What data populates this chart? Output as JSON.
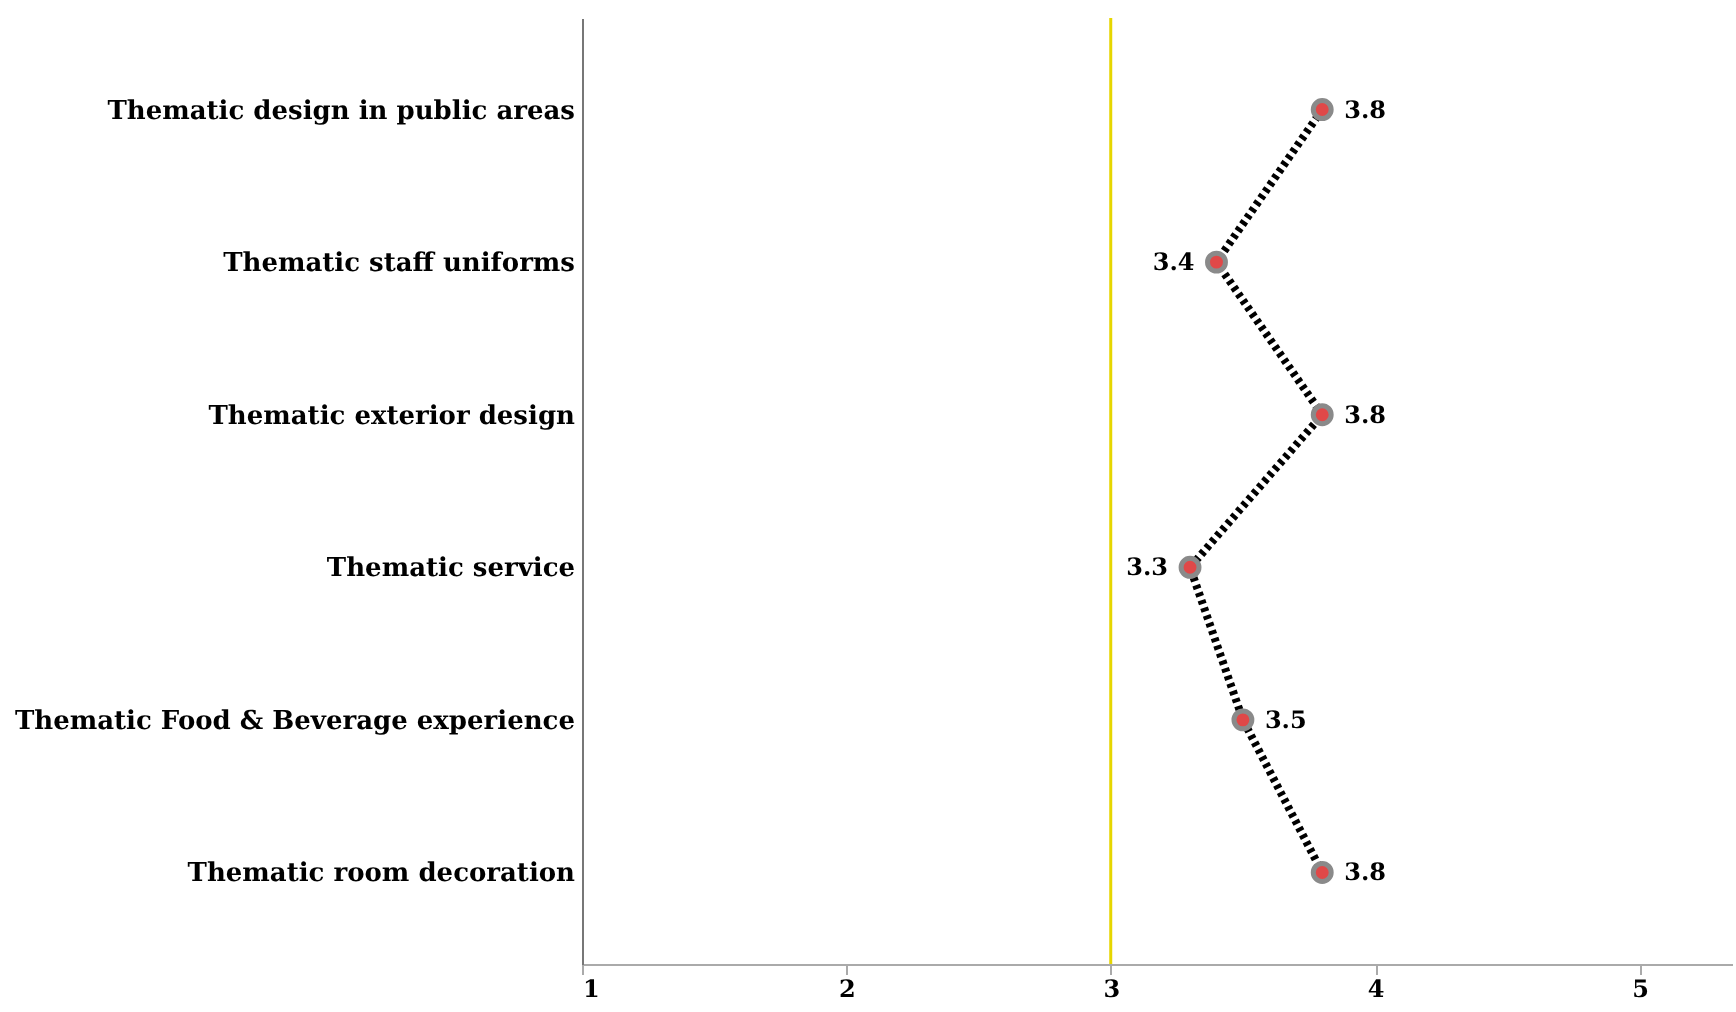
{
  "chart_data": {
    "type": "line",
    "orientation": "horizontal",
    "categories": [
      "Thematic design in public areas",
      "Thematic staff uniforms",
      "Thematic exterior design",
      "Thematic service",
      "Thematic Food & Beverage experience",
      "Thematic room decoration"
    ],
    "series": [
      {
        "color": "#000000",
        "values": [
          3.8,
          3.4,
          3.8,
          3.3,
          3.5,
          3.8
        ]
      }
    ],
    "xlim": [
      1,
      5.35
    ],
    "xticks": [
      1,
      2,
      3,
      4,
      5
    ],
    "ref_lines": [
      {
        "axis": "x",
        "value": 3,
        "color": "#e6d600"
      }
    ],
    "data_labels": true,
    "marker": "circle",
    "line_style": "dotted",
    "grid": false
  }
}
